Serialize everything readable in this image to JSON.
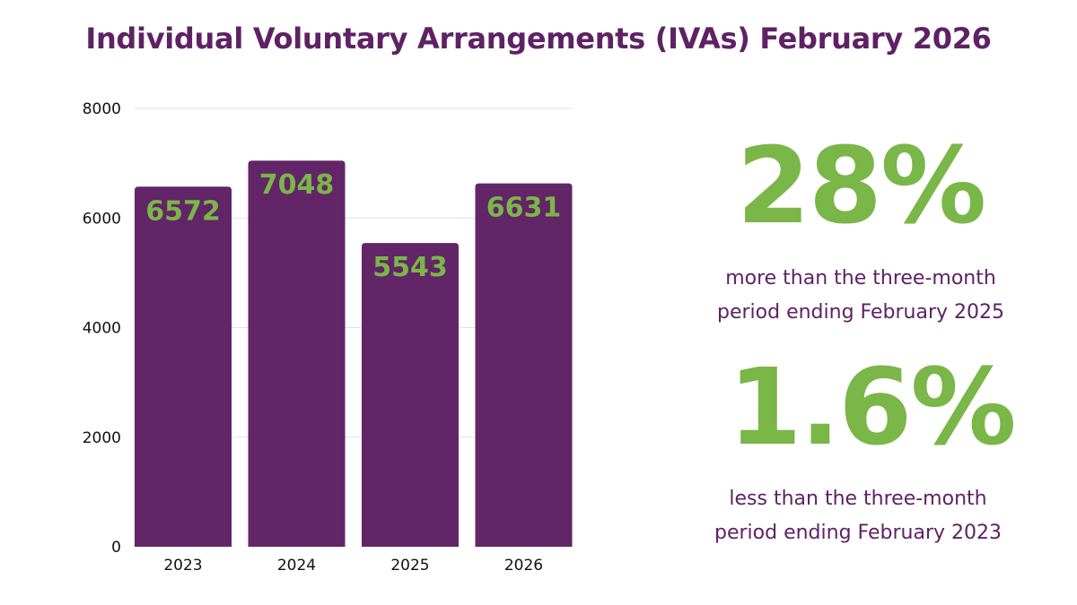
{
  "title": "Individual Voluntary Arrangements (IVAs) February 2026",
  "colors": {
    "bar": "#622567",
    "label": "#7ab648",
    "title": "#5e2264",
    "grid": "#e2e2e2"
  },
  "chart_data": {
    "type": "bar",
    "categories": [
      "2023",
      "2024",
      "2025",
      "2026"
    ],
    "values": [
      6572,
      7048,
      5543,
      6631
    ],
    "ylim": [
      0,
      8000
    ],
    "yticks": [
      0,
      2000,
      4000,
      6000,
      8000
    ],
    "grid": true,
    "xlabel": "",
    "ylabel": ""
  },
  "stats": [
    {
      "value": "28%",
      "line1": "more than the three-month",
      "line2": "period ending February 2025"
    },
    {
      "value": "1.6%",
      "line1": "less than the three-month",
      "line2": "period ending February 2023"
    }
  ]
}
